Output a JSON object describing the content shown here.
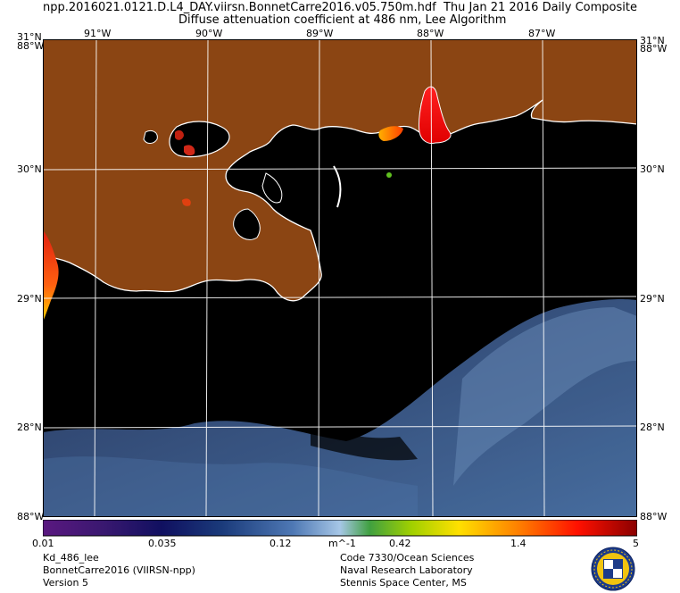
{
  "header": {
    "filename": "npp.2016021.0121.D.L4_DAY.viirsn.BonnetCarre2016.v05.750m.hdf",
    "date": "Thu Jan 21 2016 Daily Composite",
    "product": "Diffuse attenuation coefficient at 486 nm, Lee Algorithm"
  },
  "map": {
    "lon_labels": [
      "91°W",
      "90°W",
      "89°W",
      "88°W",
      "87°W"
    ],
    "lat_labels": [
      "30°N",
      "29°N",
      "28°N"
    ],
    "corner_top_left": "31°N",
    "corner_top_left2": "88°W",
    "corner_top_right": "31°N",
    "corner_top_right2": "88°W",
    "corner_bottom_left": "88°W",
    "corner_bottom_right": "88°W",
    "colors": {
      "land": "#8b4513",
      "water_no_data": "#000000",
      "coastline": "#ffffff",
      "gridline": "#ffffff"
    }
  },
  "colorbar": {
    "unit": "m^-1",
    "tick_labels": [
      "0.01",
      "0.035",
      "0.12",
      "0.42",
      "1.4",
      "5"
    ]
  },
  "footer": {
    "left": [
      "Kd_486_lee",
      "BonnetCarre2016 (VIIRSN-npp)",
      "Version 5"
    ],
    "right": [
      "Code 7330/Ocean Sciences",
      "Naval Research Laboratory",
      "Stennis Space Center, MS"
    ]
  },
  "logo": {
    "text": "NRL"
  }
}
